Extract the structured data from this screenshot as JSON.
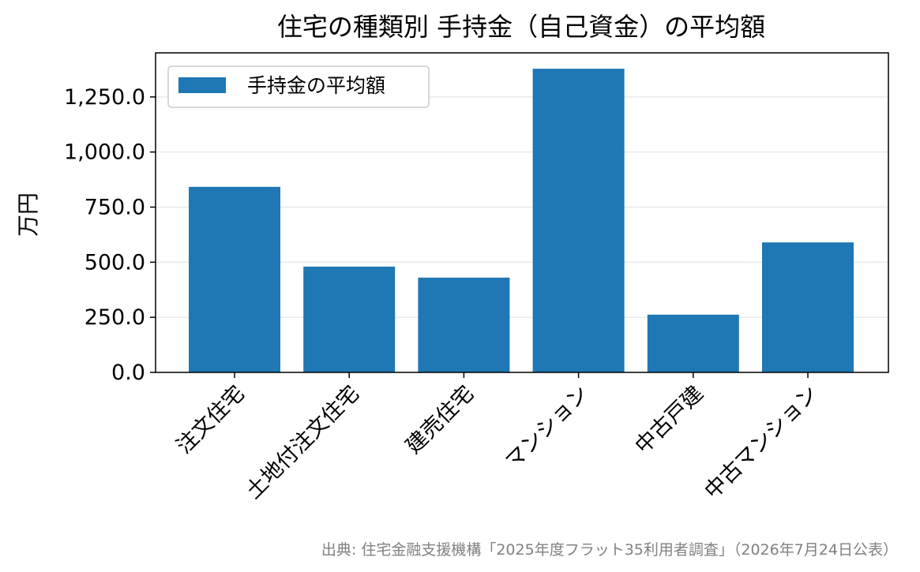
{
  "chart_data": {
    "type": "bar",
    "title": "住宅の種類別 手持金（自己資金）の平均額",
    "xlabel": "",
    "ylabel": "万円",
    "categories": [
      "注文住宅",
      "土地付注文住宅",
      "建売住宅",
      "マンション",
      "中古戸建",
      "中古マンション"
    ],
    "series": [
      {
        "name": "手持金の平均額",
        "values": [
          842,
          480,
          430,
          1378,
          262,
          590
        ],
        "color": "#1f77b4"
      }
    ],
    "ylim": [
      0,
      1450
    ],
    "yticks": [
      0,
      250,
      500,
      750,
      1000,
      1250
    ],
    "ytick_labels": [
      "0.0",
      "250.0",
      "500.0",
      "750.0",
      "1,000.0",
      "1,250.0"
    ],
    "grid": "horizontal",
    "legend_position": "top-left"
  },
  "source_note": "出典: 住宅金融支援機構「2025年度フラット35利用者調査」（2026年7月24日公表）"
}
